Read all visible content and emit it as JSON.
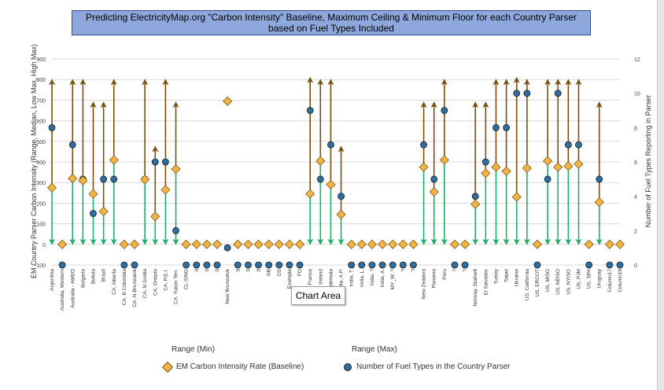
{
  "tooltip": "Chart Area",
  "range_labels": [
    "Range (Min)",
    "Range (Max)"
  ],
  "colors": {
    "max_arrow": "#7a4f10",
    "min_arrow": "#1fae6a",
    "diamond_fill": "#f5b342",
    "circle_fill": "#2d6ea3",
    "title_bg": "#8ea8dc"
  },
  "chart_data": {
    "type": "scatter",
    "title": "Predicting ElectricityMap.org \"Carbon Intensity\" Baseline, Maximum Ceiling & Minimum Floor for each Country Parser based on Fuel Types Included",
    "ylabel": "EM Country Parser Carbon Intensity (Range, Median, Low Max, High Max)",
    "y2label": "Number of Fuel Types Reporting in Parser",
    "ylim": [
      -100,
      900
    ],
    "yticks": [
      -100,
      0,
      100,
      200,
      300,
      400,
      500,
      600,
      700,
      800,
      900
    ],
    "y2lim": [
      0,
      12
    ],
    "y2ticks": [
      0,
      2,
      4,
      6,
      8,
      10,
      12
    ],
    "labeled_categories": [
      {
        "i": 0,
        "label": "Argentina"
      },
      {
        "i": 1,
        "label": "Australia, Western"
      },
      {
        "i": 2,
        "label": "Australia - AMEO"
      },
      {
        "i": 3,
        "label": "Bulgaria"
      },
      {
        "i": 4,
        "label": "Bolivia"
      },
      {
        "i": 5,
        "label": "Brazil"
      },
      {
        "i": 6,
        "label": "CA, Alberta"
      },
      {
        "i": 7,
        "label": "CA, B.Colombia"
      },
      {
        "i": 8,
        "label": "CA, N.Brunswick"
      },
      {
        "i": 9,
        "label": "CA, N.Scotia"
      },
      {
        "i": 10,
        "label": "CA, Ontario"
      },
      {
        "i": 11,
        "label": "CA, P.E.I."
      },
      {
        "i": 12,
        "label": "CA, Yukon Terr."
      },
      {
        "i": 13,
        "label": "CL-SING"
      },
      {
        "i": 14,
        "label": "0"
      },
      {
        "i": 15,
        "label": "0"
      },
      {
        "i": 16,
        "label": "0"
      },
      {
        "i": 17,
        "label": "New Brunswick"
      },
      {
        "i": 18,
        "label": "0"
      },
      {
        "i": 19,
        "label": "0"
      },
      {
        "i": 20,
        "label": "0"
      },
      {
        "i": 21,
        "label": "GB"
      },
      {
        "i": 22,
        "label": "DS"
      },
      {
        "i": 23,
        "label": "Example"
      },
      {
        "i": 24,
        "label": "FO"
      },
      {
        "i": 25,
        "label": "France"
      },
      {
        "i": 26,
        "label": "GB, N.Ireland"
      },
      {
        "i": 27,
        "label": "Guatemala"
      },
      {
        "i": 28,
        "label": "India, A.P."
      },
      {
        "i": 29,
        "label": "India, T."
      },
      {
        "i": 30,
        "label": "India, L."
      },
      {
        "i": 31,
        "label": "India, ?"
      },
      {
        "i": 32,
        "label": "India, A."
      },
      {
        "i": 33,
        "label": "MY_W..?"
      },
      {
        "i": 34,
        "label": "?"
      },
      {
        "i": 35,
        "label": "?"
      },
      {
        "i": 36,
        "label": "New Zealand"
      },
      {
        "i": 37,
        "label": "Panama"
      },
      {
        "i": 38,
        "label": "Peru"
      },
      {
        "i": 39,
        "label": "?"
      },
      {
        "i": 40,
        "label": "?"
      },
      {
        "i": 41,
        "label": "Norway, Statnett"
      },
      {
        "i": 42,
        "label": "El Salvador"
      },
      {
        "i": 43,
        "label": "Turkey"
      },
      {
        "i": 44,
        "label": "Taipei"
      },
      {
        "i": 45,
        "label": "Ukraine"
      },
      {
        "i": 46,
        "label": "US, California"
      },
      {
        "i": 47,
        "label": "US, ERCOT"
      },
      {
        "i": 48,
        "label": "US, MISO"
      },
      {
        "i": 49,
        "label": "US, NEISO"
      },
      {
        "i": 50,
        "label": "US, NYISO"
      },
      {
        "i": 51,
        "label": "US, PJM"
      },
      {
        "i": 52,
        "label": "US, SPA"
      },
      {
        "i": 53,
        "label": "Uruguay"
      },
      {
        "i": 54,
        "label": "Column17"
      },
      {
        "i": 55,
        "label": "Column18"
      }
    ],
    "range_min": [
      0,
      0,
      0,
      0,
      0,
      0,
      0,
      0,
      0,
      0,
      0,
      0,
      0,
      0,
      0,
      0,
      0,
      0,
      0,
      0,
      0,
      0,
      0,
      0,
      0,
      0,
      0,
      0,
      0,
      0,
      0,
      0,
      0,
      0,
      0,
      0,
      0,
      0,
      0,
      0,
      0,
      0,
      0,
      0,
      0,
      0,
      0,
      0,
      0,
      0,
      0,
      0,
      0,
      0,
      0,
      0
    ],
    "range_max": [
      800,
      0,
      800,
      800,
      690,
      690,
      800,
      0,
      0,
      800,
      475,
      800,
      690,
      0,
      0,
      0,
      0,
      690,
      0,
      0,
      0,
      0,
      0,
      0,
      0,
      810,
      800,
      800,
      475,
      0,
      0,
      0,
      0,
      0,
      0,
      0,
      690,
      690,
      800,
      0,
      0,
      690,
      690,
      800,
      800,
      810,
      800,
      0,
      800,
      800,
      800,
      800,
      0,
      690,
      0,
      0
    ],
    "series": [
      {
        "name": "EM Carbon Intensity Rate (Baseline)",
        "values": [
          275,
          0,
          320,
          310,
          245,
          160,
          410,
          0,
          0,
          315,
          135,
          265,
          365,
          0,
          0,
          0,
          0,
          695,
          0,
          0,
          0,
          0,
          0,
          0,
          0,
          245,
          405,
          290,
          145,
          0,
          0,
          0,
          0,
          0,
          0,
          0,
          375,
          255,
          410,
          0,
          0,
          195,
          345,
          375,
          355,
          230,
          370,
          0,
          405,
          375,
          380,
          390,
          0,
          205,
          0,
          0
        ]
      },
      {
        "name": "Number of Fuel Types in the Country Parser",
        "axis": "y2",
        "values": [
          8,
          0,
          7,
          5,
          3,
          5,
          5,
          0,
          0,
          5,
          6,
          6,
          2,
          0,
          0,
          0,
          0,
          1,
          0,
          0,
          0,
          0,
          0,
          0,
          0,
          9,
          5,
          7,
          4,
          0,
          0,
          0,
          0,
          0,
          0,
          0,
          7,
          5,
          9,
          0,
          0,
          4,
          6,
          8,
          8,
          10,
          10,
          0,
          5,
          10,
          7,
          7,
          0,
          5,
          0,
          0
        ]
      }
    ]
  }
}
